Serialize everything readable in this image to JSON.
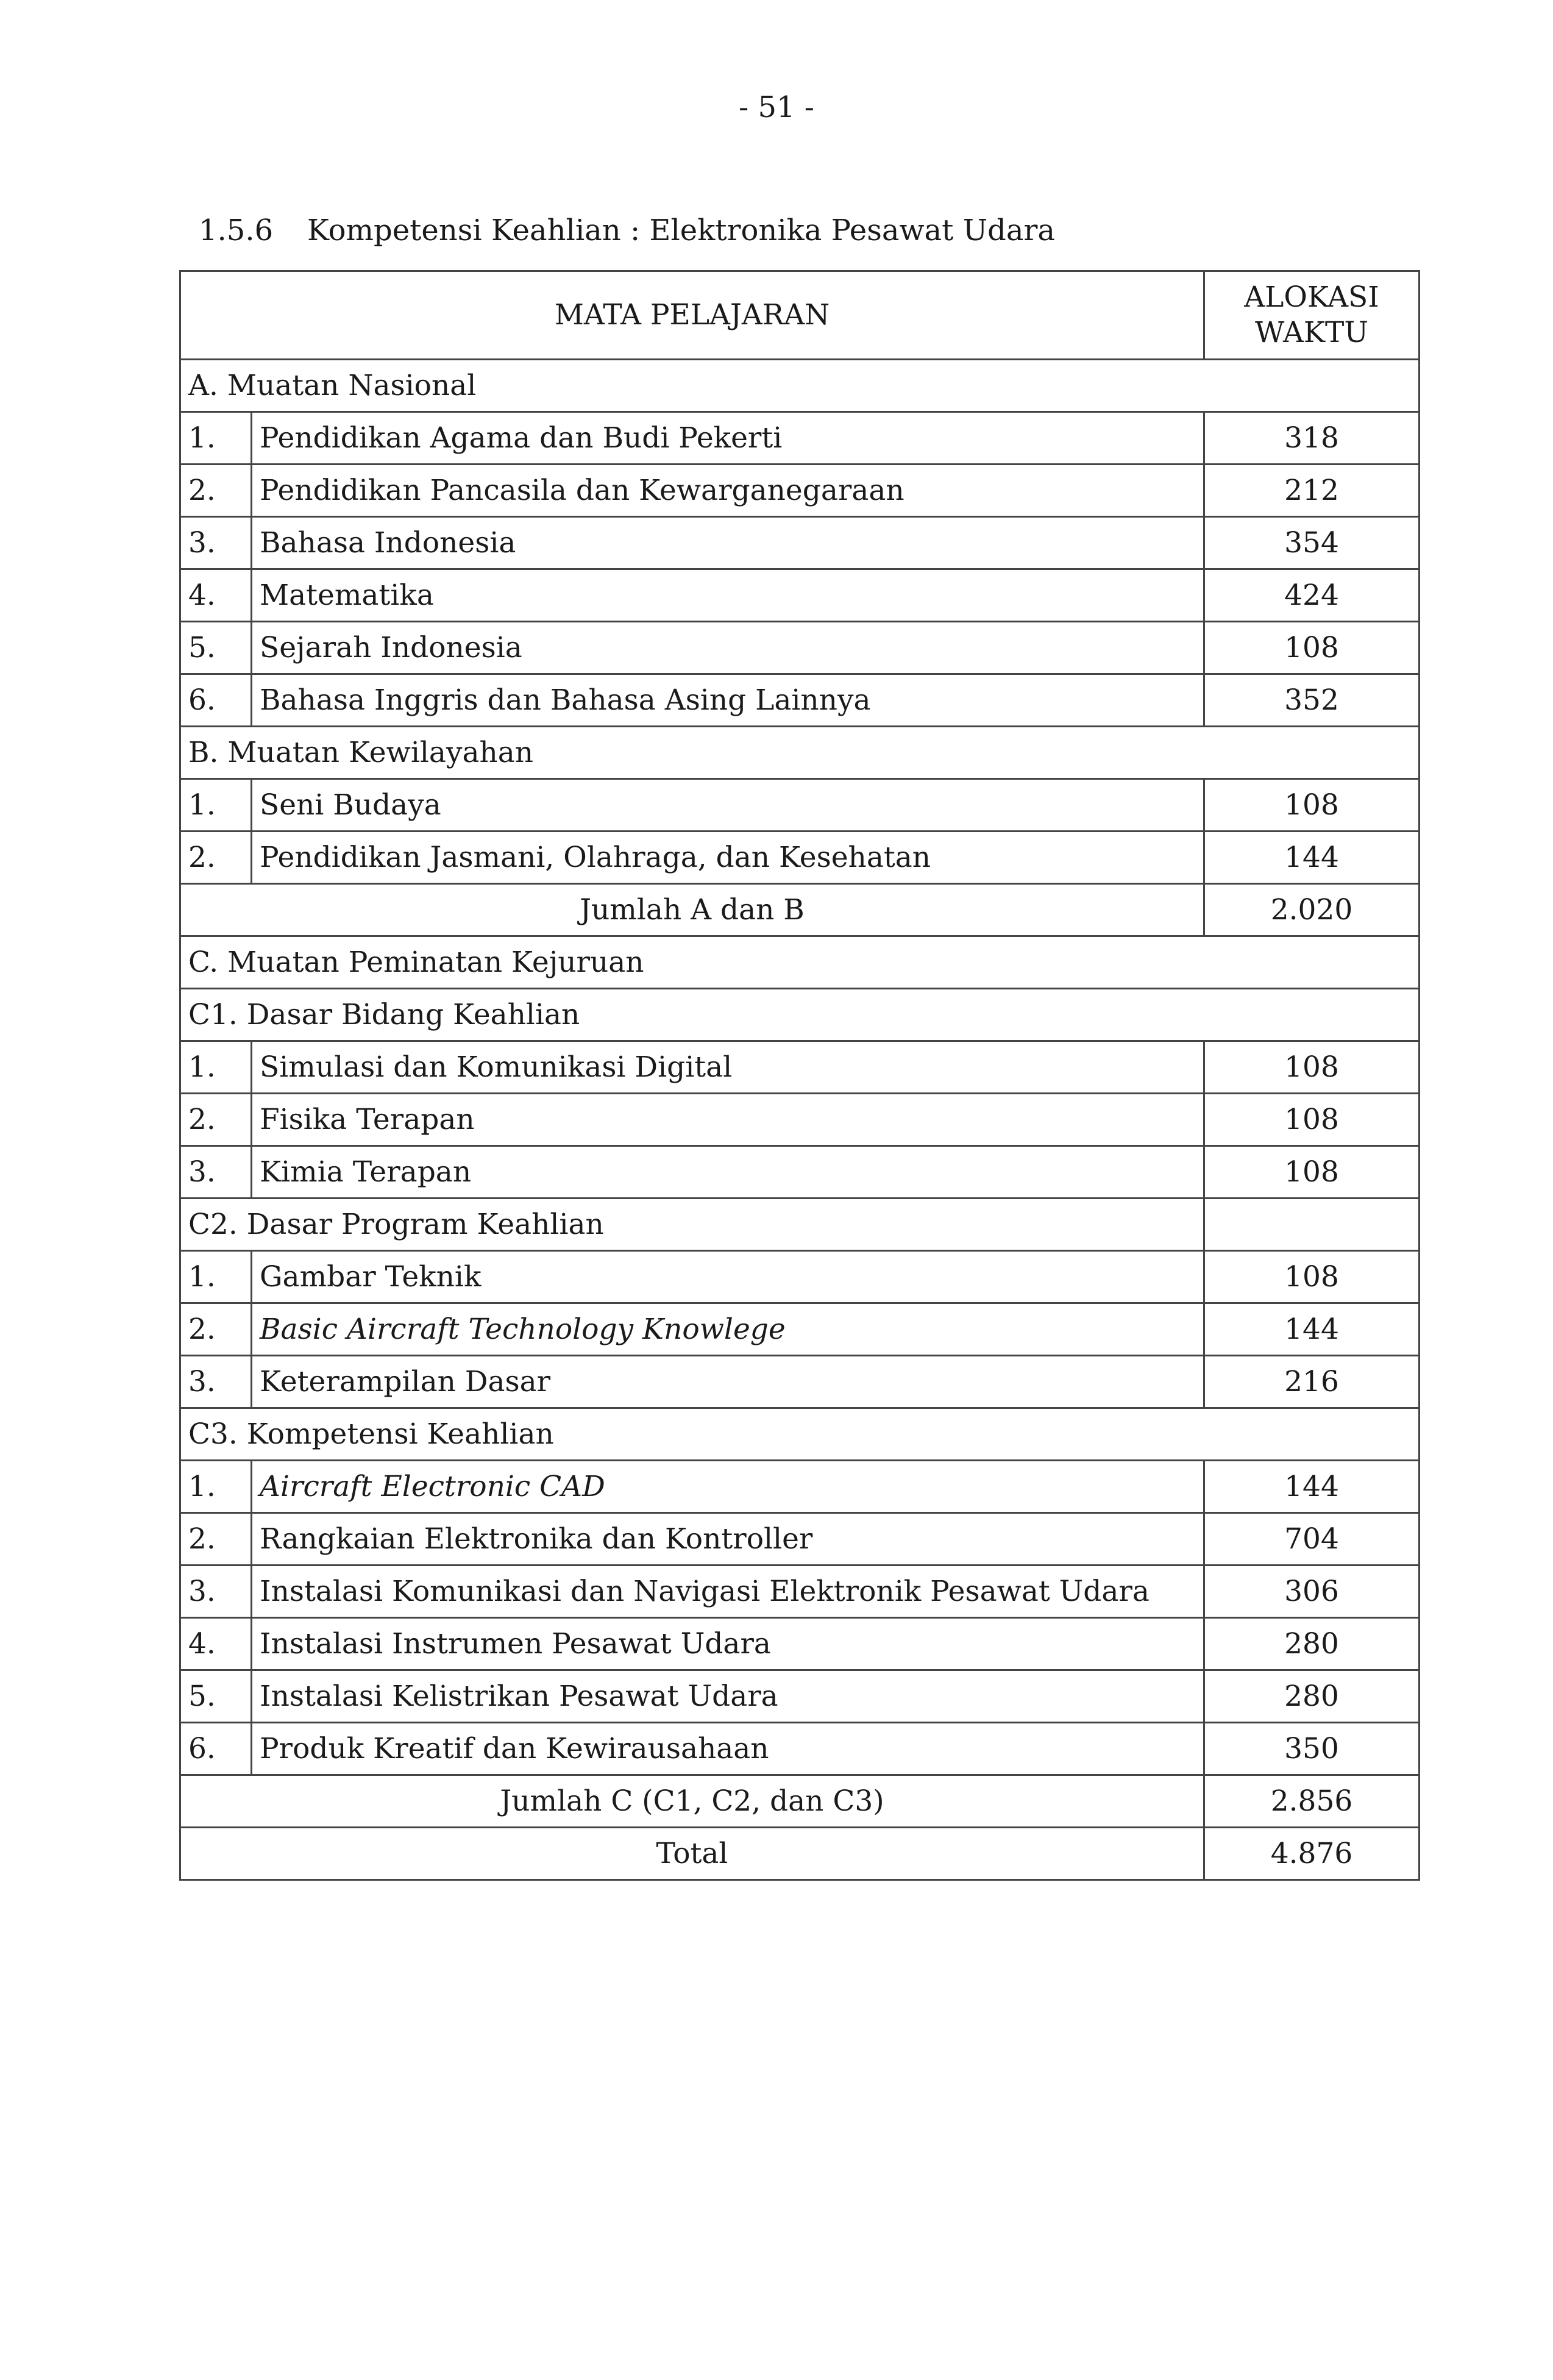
{
  "page_number": "- 51 -",
  "heading": {
    "number": "1.5.6",
    "text": "Kompetensi Keahlian : Elektronika Pesawat Udara"
  },
  "table": {
    "headers": {
      "subject": "MATA PELAJARAN",
      "time_line1": "ALOKASI",
      "time_line2": "WAKTU"
    },
    "rows": [
      {
        "type": "section",
        "label": "A. Muatan Nasional"
      },
      {
        "type": "item",
        "no": "1.",
        "name": "Pendidikan Agama dan Budi Pekerti",
        "value": "318"
      },
      {
        "type": "item",
        "no": "2.",
        "name": "Pendidikan Pancasila dan Kewarganegaraan",
        "value": "212"
      },
      {
        "type": "item",
        "no": "3.",
        "name": "Bahasa Indonesia",
        "value": "354"
      },
      {
        "type": "item",
        "no": "4.",
        "name": "Matematika",
        "value": "424"
      },
      {
        "type": "item",
        "no": "5.",
        "name": "Sejarah Indonesia",
        "value": "108"
      },
      {
        "type": "item",
        "no": "6.",
        "name": "Bahasa Inggris dan Bahasa Asing Lainnya",
        "value": "352"
      },
      {
        "type": "section",
        "label": "B. Muatan Kewilayahan"
      },
      {
        "type": "item",
        "no": "1.",
        "name": "Seni Budaya",
        "value": "108"
      },
      {
        "type": "item",
        "no": "2.",
        "name": "Pendidikan Jasmani, Olahraga, dan Kesehatan",
        "value": "144"
      },
      {
        "type": "total",
        "label": "Jumlah A dan B",
        "value": "2.020"
      },
      {
        "type": "section",
        "label": "C. Muatan Peminatan Kejuruan"
      },
      {
        "type": "section",
        "label": "C1. Dasar Bidang Keahlian"
      },
      {
        "type": "item",
        "no": "1.",
        "name": "Simulasi dan Komunikasi Digital",
        "value": "108"
      },
      {
        "type": "item",
        "no": "2.",
        "name": "Fisika Terapan",
        "value": "108"
      },
      {
        "type": "item",
        "no": "3.",
        "name": "Kimia Terapan",
        "value": "108"
      },
      {
        "type": "section-split",
        "label": "C2. Dasar Program Keahlian"
      },
      {
        "type": "item",
        "no": "1.",
        "name": "Gambar Teknik",
        "value": "108"
      },
      {
        "type": "item",
        "no": "2.",
        "name": "Basic Aircraft Technology Knowlege",
        "value": "144",
        "italic": true
      },
      {
        "type": "item",
        "no": "3.",
        "name": "Keterampilan Dasar",
        "value": "216"
      },
      {
        "type": "section",
        "label": "C3. Kompetensi Keahlian"
      },
      {
        "type": "item",
        "no": "1.",
        "name": "Aircraft Electronic CAD",
        "value": "144",
        "italic": true
      },
      {
        "type": "item",
        "no": "2.",
        "name": "Rangkaian Elektronika dan Kontroller",
        "value": "704"
      },
      {
        "type": "item",
        "no": "3.",
        "name": "Instalasi Komunikasi dan Navigasi Elektronik Pesawat Udara",
        "value": "306"
      },
      {
        "type": "item",
        "no": "4.",
        "name": "Instalasi Instrumen Pesawat Udara",
        "value": "280"
      },
      {
        "type": "item",
        "no": "5.",
        "name": "Instalasi Kelistrikan Pesawat Udara",
        "value": "280"
      },
      {
        "type": "item",
        "no": "6.",
        "name": "Produk Kreatif dan Kewirausahaan",
        "value": "350"
      },
      {
        "type": "total",
        "label": "Jumlah C (C1, C2, dan C3)",
        "value": "2.856"
      },
      {
        "type": "total",
        "label": "Total",
        "value": "4.876"
      }
    ]
  }
}
